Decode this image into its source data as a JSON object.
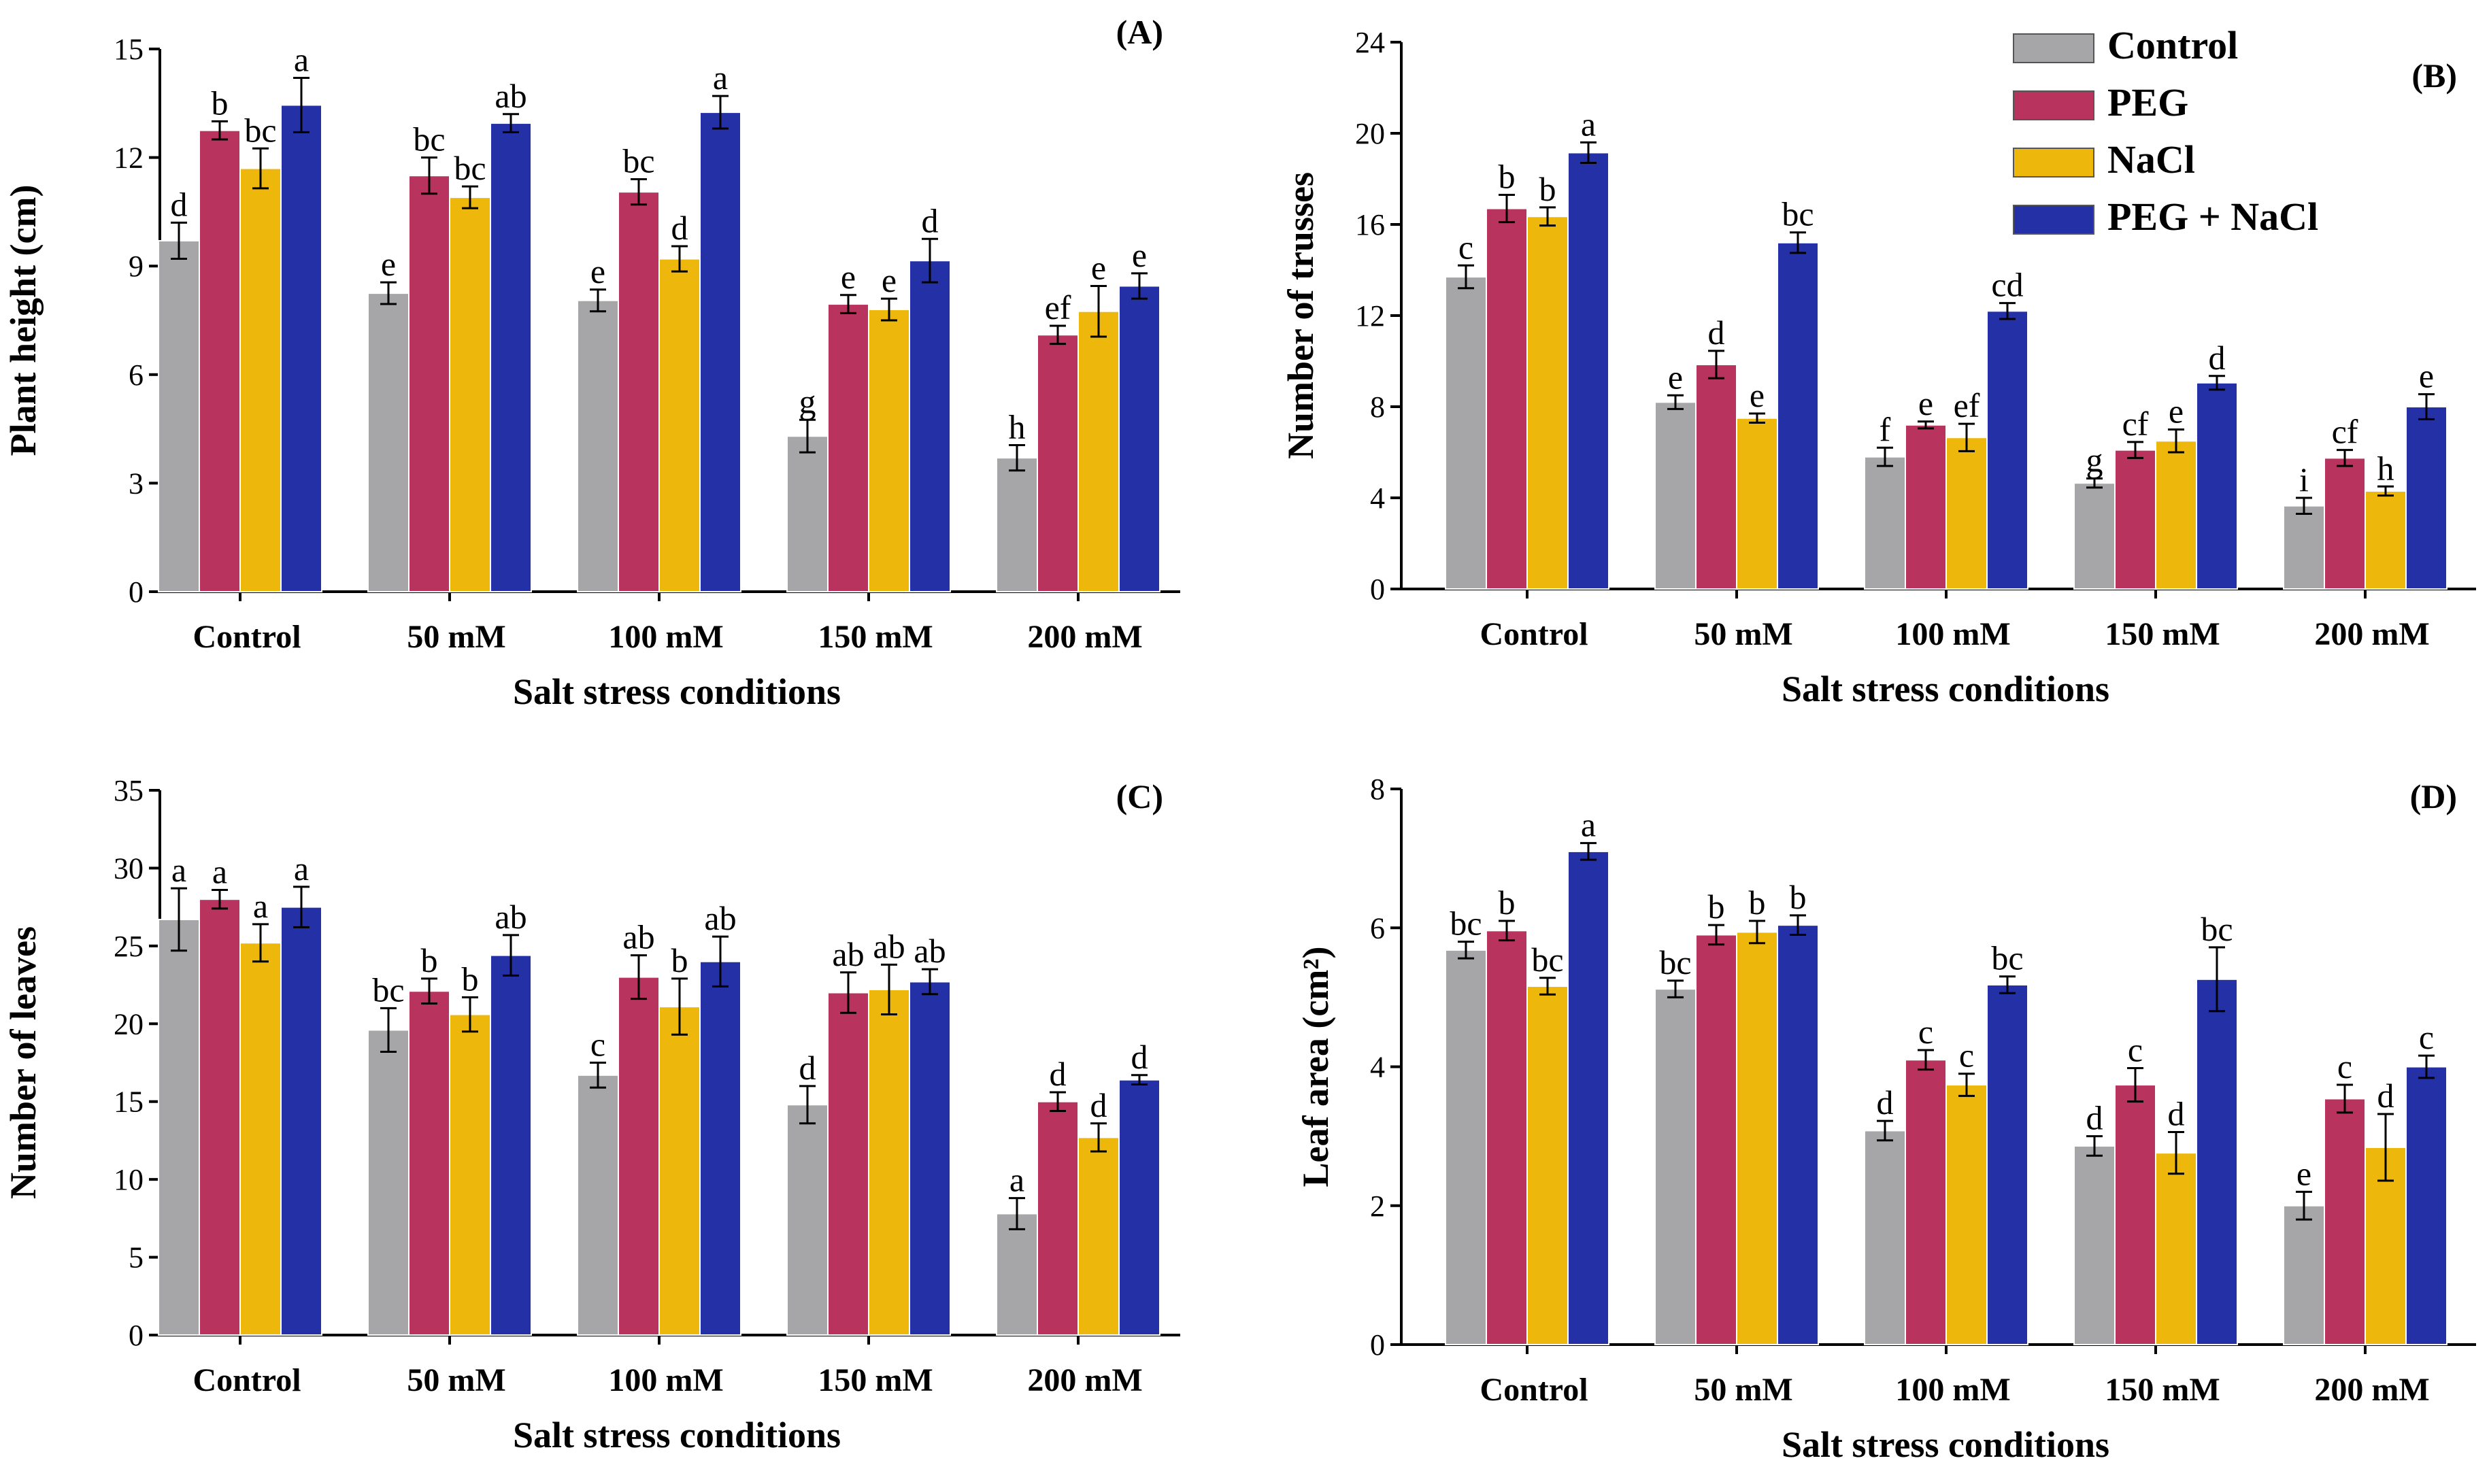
{
  "series_names": [
    "Control",
    "PEG",
    "NaCl",
    "PEG + NaCl"
  ],
  "colors": {
    "Control": "#a6a6a8",
    "PEG": "#b8335e",
    "NaCl": "#eeb70b",
    "PEG + NaCl": "#2431a6",
    "axis": "#000000"
  },
  "chart_data": [
    {
      "type": "bar",
      "panel_label": "(A)",
      "xlabel": "Salt stress conditions",
      "ylabel": "Plant height (cm)",
      "ylim": [
        0,
        15
      ],
      "yticks": [
        0,
        3,
        6,
        9,
        12,
        15
      ],
      "categories": [
        "Control",
        "50 mM",
        "100 mM",
        "150 mM",
        "200 mM"
      ],
      "series": [
        {
          "name": "Control",
          "values": [
            9.7,
            8.25,
            8.05,
            4.3,
            3.7
          ],
          "errors": [
            0.5,
            0.3,
            0.3,
            0.45,
            0.35
          ],
          "letters": [
            "d",
            "e",
            "e",
            "g",
            "h"
          ]
        },
        {
          "name": "PEG",
          "values": [
            12.75,
            11.5,
            11.05,
            7.95,
            7.1
          ],
          "errors": [
            0.25,
            0.5,
            0.35,
            0.25,
            0.25
          ],
          "letters": [
            "b",
            "bc",
            "bc",
            "e",
            "ef"
          ]
        },
        {
          "name": "NaCl",
          "values": [
            11.7,
            10.9,
            9.2,
            7.8,
            7.75
          ],
          "errors": [
            0.55,
            0.3,
            0.35,
            0.3,
            0.7
          ],
          "letters": [
            "bc",
            "bc",
            "d",
            "e",
            "e"
          ]
        },
        {
          "name": "PEG + NaCl",
          "values": [
            13.45,
            12.95,
            13.25,
            9.15,
            8.45
          ],
          "errors": [
            0.75,
            0.25,
            0.45,
            0.6,
            0.35
          ],
          "letters": [
            "a",
            "ab",
            "a",
            "d",
            "e"
          ]
        }
      ]
    },
    {
      "type": "bar",
      "panel_label": "(B)",
      "xlabel": "Salt stress conditions",
      "ylabel": "Number of trusses",
      "ylim": [
        0,
        24
      ],
      "yticks": [
        0,
        4,
        8,
        12,
        16,
        20,
        24
      ],
      "categories": [
        "Control",
        "50 mM",
        "100 mM",
        "150 mM",
        "200 mM"
      ],
      "series": [
        {
          "name": "Control",
          "values": [
            13.7,
            8.2,
            5.8,
            4.65,
            3.65
          ],
          "errors": [
            0.5,
            0.3,
            0.4,
            0.2,
            0.35
          ],
          "letters": [
            "c",
            "e",
            "f",
            "g",
            "i"
          ]
        },
        {
          "name": "PEG",
          "values": [
            16.7,
            9.85,
            7.2,
            6.1,
            5.75
          ],
          "errors": [
            0.6,
            0.6,
            0.15,
            0.35,
            0.35
          ],
          "letters": [
            "b",
            "d",
            "e",
            "cf",
            "cf"
          ]
        },
        {
          "name": "NaCl",
          "values": [
            16.35,
            7.5,
            6.65,
            6.5,
            4.3
          ],
          "errors": [
            0.4,
            0.2,
            0.6,
            0.5,
            0.2
          ],
          "letters": [
            "b",
            "e",
            "ef",
            "e",
            "h"
          ]
        },
        {
          "name": "PEG + NaCl",
          "values": [
            19.15,
            15.2,
            12.2,
            9.05,
            8.0
          ],
          "errors": [
            0.45,
            0.45,
            0.35,
            0.3,
            0.55
          ],
          "letters": [
            "a",
            "bc",
            "cd",
            "d",
            "e"
          ]
        }
      ]
    },
    {
      "type": "bar",
      "panel_label": "(C)",
      "xlabel": "Salt stress conditions",
      "ylabel": "Number of leaves",
      "ylim": [
        0,
        35
      ],
      "yticks": [
        0,
        5,
        10,
        15,
        20,
        25,
        30,
        35
      ],
      "categories": [
        "Control",
        "50 mM",
        "100 mM",
        "150 mM",
        "200 mM"
      ],
      "series": [
        {
          "name": "Control",
          "values": [
            26.7,
            19.6,
            16.7,
            14.8,
            7.8
          ],
          "errors": [
            2.0,
            1.4,
            0.8,
            1.2,
            1.0
          ],
          "letters": [
            "a",
            "bc",
            "c",
            "d",
            "a"
          ]
        },
        {
          "name": "PEG",
          "values": [
            28.0,
            22.1,
            23.0,
            22.0,
            15.0
          ],
          "errors": [
            0.6,
            0.8,
            1.4,
            1.3,
            0.6
          ],
          "letters": [
            "a",
            "b",
            "ab",
            "ab",
            "d"
          ]
        },
        {
          "name": "NaCl",
          "values": [
            25.2,
            20.6,
            21.1,
            22.2,
            12.7
          ],
          "errors": [
            1.2,
            1.1,
            1.8,
            1.6,
            0.9
          ],
          "letters": [
            "a",
            "b",
            "b",
            "ab",
            "d"
          ]
        },
        {
          "name": "PEG + NaCl",
          "values": [
            27.5,
            24.4,
            24.0,
            22.7,
            16.4
          ],
          "errors": [
            1.3,
            1.3,
            1.6,
            0.8,
            0.3
          ],
          "letters": [
            "a",
            "ab",
            "ab",
            "ab",
            "d"
          ]
        }
      ]
    },
    {
      "type": "bar",
      "panel_label": "(D)",
      "xlabel": "Salt stress conditions",
      "ylabel": "Leaf area (cm²)",
      "ylim": [
        0,
        8
      ],
      "yticks": [
        0,
        2,
        4,
        6,
        8
      ],
      "categories": [
        "Control",
        "50 mM",
        "100 mM",
        "150 mM",
        "200 mM"
      ],
      "series": [
        {
          "name": "Control",
          "values": [
            5.68,
            5.12,
            3.08,
            2.86,
            2.0
          ],
          "errors": [
            0.12,
            0.12,
            0.14,
            0.14,
            0.2
          ],
          "letters": [
            "bc",
            "bc",
            "d",
            "d",
            "e"
          ]
        },
        {
          "name": "PEG",
          "values": [
            5.96,
            5.9,
            4.1,
            3.74,
            3.54
          ],
          "errors": [
            0.14,
            0.14,
            0.14,
            0.24,
            0.2
          ],
          "letters": [
            "b",
            "b",
            "c",
            "c",
            "c"
          ]
        },
        {
          "name": "NaCl",
          "values": [
            5.16,
            5.94,
            3.74,
            2.76,
            2.84
          ],
          "errors": [
            0.12,
            0.16,
            0.16,
            0.3,
            0.48
          ],
          "letters": [
            "bc",
            "b",
            "c",
            "d",
            "d"
          ]
        },
        {
          "name": "PEG + NaCl",
          "values": [
            7.1,
            6.04,
            5.18,
            5.26,
            4.0
          ],
          "errors": [
            0.12,
            0.14,
            0.12,
            0.46,
            0.16
          ],
          "letters": [
            "a",
            "b",
            "bc",
            "bc",
            "c"
          ]
        }
      ]
    }
  ]
}
